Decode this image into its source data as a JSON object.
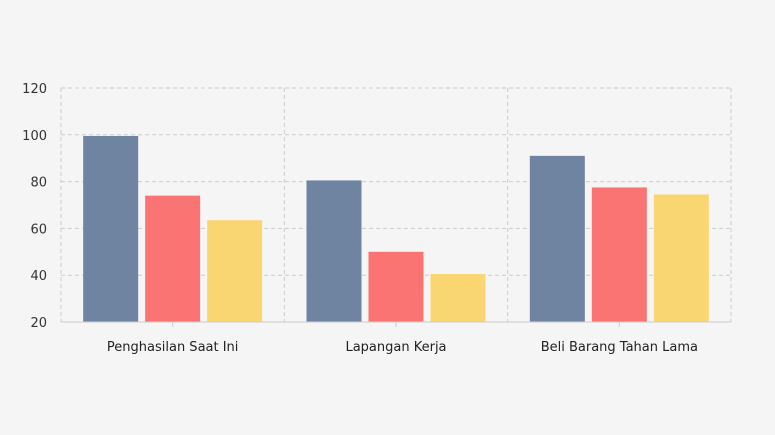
{
  "chart_data": {
    "type": "bar",
    "title": "",
    "xlabel": "",
    "ylabel": "",
    "categories": [
      "Penghasilan Saat Ini",
      "Lapangan Kerja",
      "Beli Barang Tahan Lama"
    ],
    "series": [
      {
        "color": "#6f84a0",
        "values": [
          99.5,
          80.5,
          91
        ]
      },
      {
        "color": "#fb7474",
        "values": [
          74,
          50,
          77.5
        ]
      },
      {
        "color": "#fad673",
        "values": [
          63.5,
          40.5,
          74.5
        ]
      }
    ],
    "ylim": [
      20,
      120
    ],
    "yticks": [
      20,
      40,
      60,
      80,
      100,
      120
    ],
    "grid": true,
    "legend": "none"
  }
}
